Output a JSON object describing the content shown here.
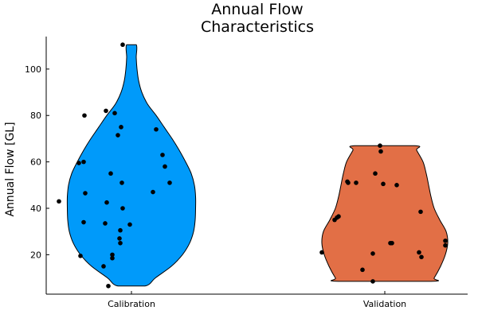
{
  "chart_data": {
    "type": "violin",
    "title_lines": [
      "Annual Flow",
      "Characteristics"
    ],
    "ylabel": "Annual Flow [GL]",
    "xlabel": "",
    "ylim": [
      3,
      114
    ],
    "yticks": [
      20,
      40,
      60,
      80,
      100
    ],
    "grid": false,
    "legend": "none",
    "categories": [
      "Calibration",
      "Validation"
    ],
    "series": [
      {
        "category": "Calibration",
        "color": "#009AFA",
        "range": [
          6.5,
          110.5
        ],
        "profile": [
          [
            6.5,
            17
          ],
          [
            10,
            30
          ],
          [
            15,
            50
          ],
          [
            20,
            64
          ],
          [
            25,
            73
          ],
          [
            30,
            78
          ],
          [
            35,
            80
          ],
          [
            40,
            80.5
          ],
          [
            45,
            80.5
          ],
          [
            50,
            79
          ],
          [
            55,
            75
          ],
          [
            60,
            68
          ],
          [
            65,
            60
          ],
          [
            70,
            51
          ],
          [
            75,
            41
          ],
          [
            80,
            31
          ],
          [
            85,
            20
          ],
          [
            90,
            13
          ],
          [
            95,
            9
          ],
          [
            100,
            7
          ],
          [
            105,
            6
          ],
          [
            110.5,
            6
          ]
        ],
        "points": [
          [
            -11,
            110.5
          ],
          [
            -32,
            82
          ],
          [
            -21,
            81
          ],
          [
            -59,
            80
          ],
          [
            -13,
            75
          ],
          [
            31,
            74
          ],
          [
            -17,
            71.5
          ],
          [
            39,
            63
          ],
          [
            -66,
            59.5
          ],
          [
            -60,
            60
          ],
          [
            42,
            58
          ],
          [
            -26,
            55
          ],
          [
            -12,
            51
          ],
          [
            48,
            51
          ],
          [
            -58,
            46.5
          ],
          [
            27,
            47
          ],
          [
            -91,
            43
          ],
          [
            -31,
            42.5
          ],
          [
            -11,
            40
          ],
          [
            -60,
            34
          ],
          [
            -33,
            33.5
          ],
          [
            -2,
            33
          ],
          [
            -14,
            30.5
          ],
          [
            -15,
            27
          ],
          [
            -14,
            25
          ],
          [
            -24,
            20
          ],
          [
            -24,
            18.5
          ],
          [
            -64,
            19.5
          ],
          [
            -35,
            15
          ],
          [
            -29,
            6.5
          ]
        ]
      },
      {
        "category": "Validation",
        "color": "#E26F46",
        "range": [
          8.5,
          67
        ],
        "profile": [
          [
            8.5,
            58
          ],
          [
            10,
            62
          ],
          [
            15,
            70
          ],
          [
            20,
            76
          ],
          [
            25,
            79
          ],
          [
            30,
            77
          ],
          [
            35,
            69
          ],
          [
            40,
            62
          ],
          [
            45,
            58
          ],
          [
            50,
            55
          ],
          [
            55,
            52
          ],
          [
            60,
            48
          ],
          [
            65,
            40
          ],
          [
            67,
            38
          ]
        ],
        "points": [
          [
            -6,
            67
          ],
          [
            -5,
            64.5
          ],
          [
            -12,
            55
          ],
          [
            -47,
            51.5
          ],
          [
            -46,
            51
          ],
          [
            -36,
            51
          ],
          [
            -2,
            50.5
          ],
          [
            15,
            50
          ],
          [
            45,
            38.5
          ],
          [
            -58,
            36.5
          ],
          [
            -63,
            35
          ],
          [
            -60,
            36
          ],
          [
            76,
            26
          ],
          [
            9,
            25
          ],
          [
            7,
            25
          ],
          [
            76,
            24
          ],
          [
            -79,
            21
          ],
          [
            -15,
            20.5
          ],
          [
            43,
            21
          ],
          [
            46,
            19
          ],
          [
            -28,
            13.5
          ],
          [
            -15,
            8.5
          ]
        ]
      }
    ]
  }
}
